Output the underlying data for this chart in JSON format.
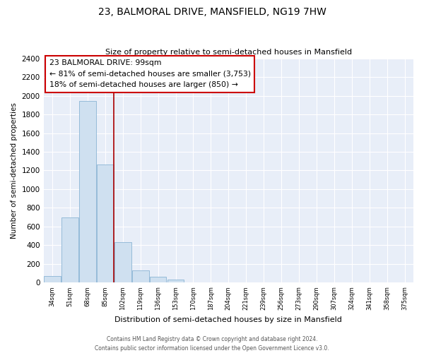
{
  "title": "23, BALMORAL DRIVE, MANSFIELD, NG19 7HW",
  "subtitle": "Size of property relative to semi-detached houses in Mansfield",
  "xlabel": "Distribution of semi-detached houses by size in Mansfield",
  "ylabel": "Number of semi-detached properties",
  "bar_labels": [
    "34sqm",
    "51sqm",
    "68sqm",
    "85sqm",
    "102sqm",
    "119sqm",
    "136sqm",
    "153sqm",
    "170sqm",
    "187sqm",
    "204sqm",
    "221sqm",
    "239sqm",
    "256sqm",
    "273sqm",
    "290sqm",
    "307sqm",
    "324sqm",
    "341sqm",
    "358sqm",
    "375sqm"
  ],
  "bar_values": [
    70,
    700,
    1940,
    1265,
    430,
    135,
    60,
    35,
    0,
    0,
    0,
    0,
    0,
    0,
    0,
    0,
    0,
    0,
    0,
    0,
    0
  ],
  "bar_color": "#cfe0f0",
  "bar_edge_color": "#8ab4d4",
  "highlight_label": "23 BALMORAL DRIVE: 99sqm",
  "annot_line1": "← 81% of semi-detached houses are smaller (3,753)",
  "annot_line2": "18% of semi-detached houses are larger (850) →",
  "vline_color": "#aa0000",
  "vline_x": 3.5,
  "ylim": [
    0,
    2400
  ],
  "yticks": [
    0,
    200,
    400,
    600,
    800,
    1000,
    1200,
    1400,
    1600,
    1800,
    2000,
    2200,
    2400
  ],
  "bg_color": "#e8eef8",
  "grid_color": "#ffffff",
  "footer1": "Contains HM Land Registry data © Crown copyright and database right 2024.",
  "footer2": "Contains public sector information licensed under the Open Government Licence v3.0."
}
